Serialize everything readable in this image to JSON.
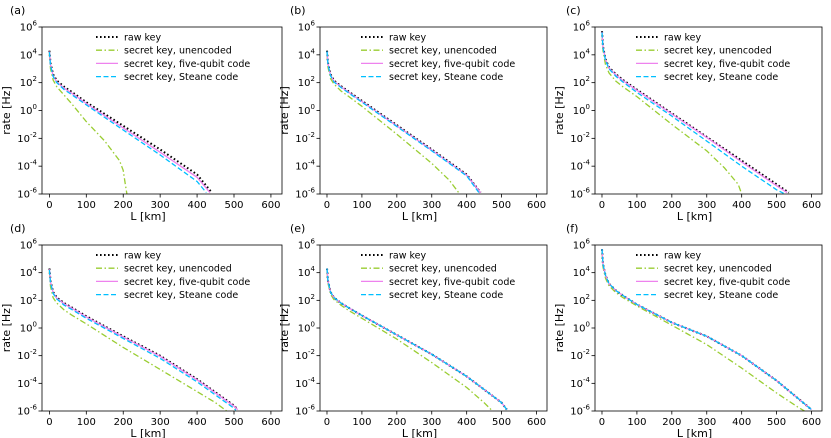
{
  "figure": {
    "xlabel": "L [km]",
    "ylabel": "rate [Hz]"
  },
  "legend": {
    "entries": [
      {
        "label": "raw key",
        "series": "raw",
        "color": "#000000",
        "dash": "dotted"
      },
      {
        "label": "secret key, unencoded",
        "series": "unencoded",
        "color": "#9acd32",
        "dash": "dashdot"
      },
      {
        "label": "secret key, five-qubit code",
        "series": "five_qubit",
        "color": "#ee82ee",
        "dash": "solid"
      },
      {
        "label": "secret key, Steane code",
        "series": "steane",
        "color": "#00bfff",
        "dash": "dashed"
      }
    ]
  },
  "chart_data": [
    {
      "panel": "(a)",
      "type": "line",
      "xlabel": "L [km]",
      "ylabel": "rate [Hz]",
      "xlim": [
        -20,
        630
      ],
      "xticks": [
        0,
        100,
        200,
        300,
        400,
        500,
        600
      ],
      "yscale": "log",
      "ylim_exp": [
        -6,
        6
      ],
      "yticks_exp": [
        -6,
        -4,
        -2,
        0,
        2,
        4,
        6
      ],
      "series": {
        "raw": {
          "x": [
            0,
            3,
            10,
            20,
            40,
            60,
            100,
            200,
            300,
            400,
            440
          ],
          "log10_y": [
            4.3,
            3.4,
            2.6,
            2.15,
            1.7,
            1.35,
            0.6,
            -1.1,
            -2.8,
            -4.6,
            -5.9
          ]
        },
        "unencoded": {
          "x": [
            0,
            3,
            10,
            20,
            40,
            60,
            100,
            150,
            190,
            200,
            205,
            210
          ],
          "log10_y": [
            4.1,
            3.0,
            2.2,
            1.7,
            1.1,
            0.5,
            -0.8,
            -2.2,
            -3.6,
            -4.3,
            -5.2,
            -6.0
          ]
        },
        "five_qubit": {
          "x": [
            0,
            3,
            10,
            20,
            40,
            60,
            100,
            200,
            300,
            400,
            435
          ],
          "log10_y": [
            4.25,
            3.3,
            2.5,
            2.05,
            1.6,
            1.25,
            0.5,
            -1.25,
            -3.0,
            -4.8,
            -5.9
          ]
        },
        "steane": {
          "x": [
            0,
            3,
            10,
            20,
            40,
            60,
            100,
            200,
            300,
            400,
            425
          ],
          "log10_y": [
            4.2,
            3.25,
            2.45,
            2.0,
            1.5,
            1.15,
            0.4,
            -1.4,
            -3.2,
            -5.1,
            -5.9
          ]
        }
      }
    },
    {
      "panel": "(b)",
      "type": "line",
      "xlabel": "L [km]",
      "ylabel": "rate [Hz]",
      "xlim": [
        -20,
        630
      ],
      "xticks": [
        0,
        100,
        200,
        300,
        400,
        500,
        600
      ],
      "yscale": "log",
      "ylim_exp": [
        -6,
        6
      ],
      "yticks_exp": [
        -6,
        -4,
        -2,
        0,
        2,
        4,
        6
      ],
      "series": {
        "raw": {
          "x": [
            0,
            3,
            10,
            20,
            40,
            60,
            100,
            200,
            300,
            400,
            440
          ],
          "log10_y": [
            4.3,
            3.4,
            2.6,
            2.15,
            1.75,
            1.4,
            0.7,
            -1.05,
            -2.8,
            -4.6,
            -5.9
          ]
        },
        "unencoded": {
          "x": [
            0,
            3,
            10,
            20,
            40,
            60,
            100,
            200,
            300,
            350,
            380
          ],
          "log10_y": [
            4.1,
            3.1,
            2.3,
            1.9,
            1.4,
            1.05,
            0.3,
            -1.7,
            -3.8,
            -5.0,
            -6.0
          ]
        },
        "five_qubit": {
          "x": [
            0,
            3,
            10,
            20,
            40,
            60,
            100,
            200,
            300,
            400,
            440
          ],
          "log10_y": [
            4.25,
            3.35,
            2.55,
            2.1,
            1.7,
            1.35,
            0.65,
            -1.1,
            -2.85,
            -4.65,
            -5.9
          ]
        },
        "steane": {
          "x": [
            0,
            3,
            10,
            20,
            40,
            60,
            100,
            200,
            300,
            400,
            435
          ],
          "log10_y": [
            4.25,
            3.3,
            2.5,
            2.05,
            1.65,
            1.3,
            0.6,
            -1.15,
            -2.9,
            -4.7,
            -5.9
          ]
        }
      }
    },
    {
      "panel": "(c)",
      "type": "line",
      "xlabel": "L [km]",
      "ylabel": "rate [Hz]",
      "xlim": [
        -20,
        630
      ],
      "xticks": [
        0,
        100,
        200,
        300,
        400,
        500,
        600
      ],
      "yscale": "log",
      "ylim_exp": [
        -6,
        6
      ],
      "yticks_exp": [
        -6,
        -4,
        -2,
        0,
        2,
        4,
        6
      ],
      "series": {
        "raw": {
          "x": [
            0,
            3,
            10,
            20,
            40,
            60,
            100,
            200,
            300,
            400,
            500,
            535
          ],
          "log10_y": [
            5.7,
            4.6,
            3.7,
            3.1,
            2.6,
            2.2,
            1.5,
            -0.2,
            -1.9,
            -3.6,
            -5.3,
            -5.9
          ]
        },
        "unencoded": {
          "x": [
            0,
            3,
            10,
            20,
            40,
            60,
            100,
            200,
            300,
            350,
            390,
            400
          ],
          "log10_y": [
            5.5,
            4.3,
            3.3,
            2.7,
            2.1,
            1.7,
            1.0,
            -1.0,
            -2.9,
            -4.1,
            -5.3,
            -6.0
          ]
        },
        "five_qubit": {
          "x": [
            0,
            3,
            10,
            20,
            40,
            60,
            100,
            200,
            300,
            400,
            500,
            530
          ],
          "log10_y": [
            5.65,
            4.55,
            3.65,
            3.05,
            2.55,
            2.15,
            1.45,
            -0.25,
            -1.95,
            -3.7,
            -5.4,
            -5.9
          ]
        },
        "steane": {
          "x": [
            0,
            3,
            10,
            20,
            40,
            60,
            100,
            200,
            300,
            400,
            500,
            520
          ],
          "log10_y": [
            5.6,
            4.5,
            3.6,
            3.0,
            2.45,
            2.05,
            1.3,
            -0.4,
            -2.2,
            -4.0,
            -5.7,
            -5.95
          ]
        }
      }
    },
    {
      "panel": "(d)",
      "type": "line",
      "xlabel": "L [km]",
      "ylabel": "rate [Hz]",
      "xlim": [
        -20,
        630
      ],
      "xticks": [
        0,
        100,
        200,
        300,
        400,
        500,
        600
      ],
      "yscale": "log",
      "ylim_exp": [
        -6,
        6
      ],
      "yticks_exp": [
        -6,
        -4,
        -2,
        0,
        2,
        4,
        6
      ],
      "series": {
        "raw": {
          "x": [
            0,
            3,
            10,
            20,
            40,
            60,
            100,
            200,
            300,
            400,
            500,
            510
          ],
          "log10_y": [
            4.3,
            3.4,
            2.6,
            2.2,
            1.8,
            1.5,
            0.85,
            -0.6,
            -2.0,
            -3.7,
            -5.6,
            -5.9
          ]
        },
        "unencoded": {
          "x": [
            0,
            3,
            10,
            20,
            40,
            60,
            100,
            200,
            300,
            400,
            450,
            480
          ],
          "log10_y": [
            4.1,
            3.0,
            2.2,
            1.8,
            1.3,
            0.95,
            0.3,
            -1.4,
            -3.0,
            -4.6,
            -5.4,
            -6.0
          ]
        },
        "five_qubit": {
          "x": [
            0,
            3,
            10,
            20,
            40,
            60,
            100,
            200,
            300,
            400,
            500,
            510
          ],
          "log10_y": [
            4.25,
            3.35,
            2.55,
            2.15,
            1.75,
            1.45,
            0.8,
            -0.65,
            -2.05,
            -3.75,
            -5.65,
            -5.9
          ]
        },
        "steane": {
          "x": [
            0,
            3,
            10,
            20,
            40,
            60,
            100,
            200,
            300,
            400,
            500,
            505
          ],
          "log10_y": [
            4.2,
            3.3,
            2.5,
            2.1,
            1.65,
            1.35,
            0.7,
            -0.75,
            -2.2,
            -3.9,
            -5.8,
            -5.95
          ]
        }
      }
    },
    {
      "panel": "(e)",
      "type": "line",
      "xlabel": "L [km]",
      "ylabel": "rate [Hz]",
      "xlim": [
        -20,
        630
      ],
      "xticks": [
        0,
        100,
        200,
        300,
        400,
        500,
        600
      ],
      "yscale": "log",
      "ylim_exp": [
        -6,
        6
      ],
      "yticks_exp": [
        -6,
        -4,
        -2,
        0,
        2,
        4,
        6
      ],
      "series": {
        "raw": {
          "x": [
            0,
            3,
            10,
            20,
            40,
            60,
            100,
            200,
            300,
            400,
            500,
            515
          ],
          "log10_y": [
            4.3,
            3.4,
            2.6,
            2.2,
            1.8,
            1.5,
            0.9,
            -0.5,
            -1.9,
            -3.5,
            -5.4,
            -5.9
          ]
        },
        "unencoded": {
          "x": [
            0,
            3,
            10,
            20,
            40,
            60,
            100,
            200,
            300,
            400,
            450,
            470
          ],
          "log10_y": [
            4.15,
            3.25,
            2.45,
            2.05,
            1.65,
            1.3,
            0.7,
            -0.8,
            -2.5,
            -4.3,
            -5.4,
            -5.9
          ]
        },
        "five_qubit": {
          "x": [
            0,
            3,
            10,
            20,
            40,
            60,
            100,
            200,
            300,
            400,
            500,
            515
          ],
          "log10_y": [
            4.3,
            3.4,
            2.6,
            2.2,
            1.8,
            1.5,
            0.9,
            -0.5,
            -1.9,
            -3.5,
            -5.4,
            -5.9
          ]
        },
        "steane": {
          "x": [
            0,
            3,
            10,
            20,
            40,
            60,
            100,
            200,
            300,
            400,
            500,
            515
          ],
          "log10_y": [
            4.3,
            3.4,
            2.6,
            2.2,
            1.8,
            1.5,
            0.9,
            -0.5,
            -1.9,
            -3.5,
            -5.4,
            -5.9
          ]
        }
      }
    },
    {
      "panel": "(f)",
      "type": "line",
      "xlabel": "L [km]",
      "ylabel": "rate [Hz]",
      "xlim": [
        -20,
        630
      ],
      "xticks": [
        0,
        100,
        200,
        300,
        400,
        500,
        600
      ],
      "yscale": "log",
      "ylim_exp": [
        -6,
        6
      ],
      "yticks_exp": [
        -6,
        -4,
        -2,
        0,
        2,
        4,
        6
      ],
      "series": {
        "raw": {
          "x": [
            0,
            3,
            10,
            20,
            40,
            60,
            100,
            200,
            300,
            400,
            500,
            600
          ],
          "log10_y": [
            5.7,
            4.6,
            3.8,
            3.2,
            2.7,
            2.35,
            1.7,
            0.4,
            -0.6,
            -2.0,
            -3.8,
            -5.9
          ]
        },
        "unencoded": {
          "x": [
            0,
            3,
            10,
            20,
            40,
            60,
            100,
            200,
            300,
            400,
            500,
            560,
            580
          ],
          "log10_y": [
            5.5,
            4.4,
            3.6,
            3.05,
            2.55,
            2.2,
            1.6,
            0.2,
            -1.2,
            -2.9,
            -4.7,
            -5.7,
            -6.0
          ]
        },
        "five_qubit": {
          "x": [
            0,
            3,
            10,
            20,
            40,
            60,
            100,
            200,
            300,
            400,
            500,
            600
          ],
          "log10_y": [
            5.7,
            4.6,
            3.8,
            3.2,
            2.7,
            2.35,
            1.7,
            0.4,
            -0.6,
            -2.0,
            -3.8,
            -5.9
          ]
        },
        "steane": {
          "x": [
            0,
            3,
            10,
            20,
            40,
            60,
            100,
            200,
            300,
            400,
            500,
            600
          ],
          "log10_y": [
            5.7,
            4.6,
            3.8,
            3.2,
            2.7,
            2.35,
            1.7,
            0.4,
            -0.6,
            -2.0,
            -3.8,
            -5.9
          ]
        }
      }
    }
  ]
}
